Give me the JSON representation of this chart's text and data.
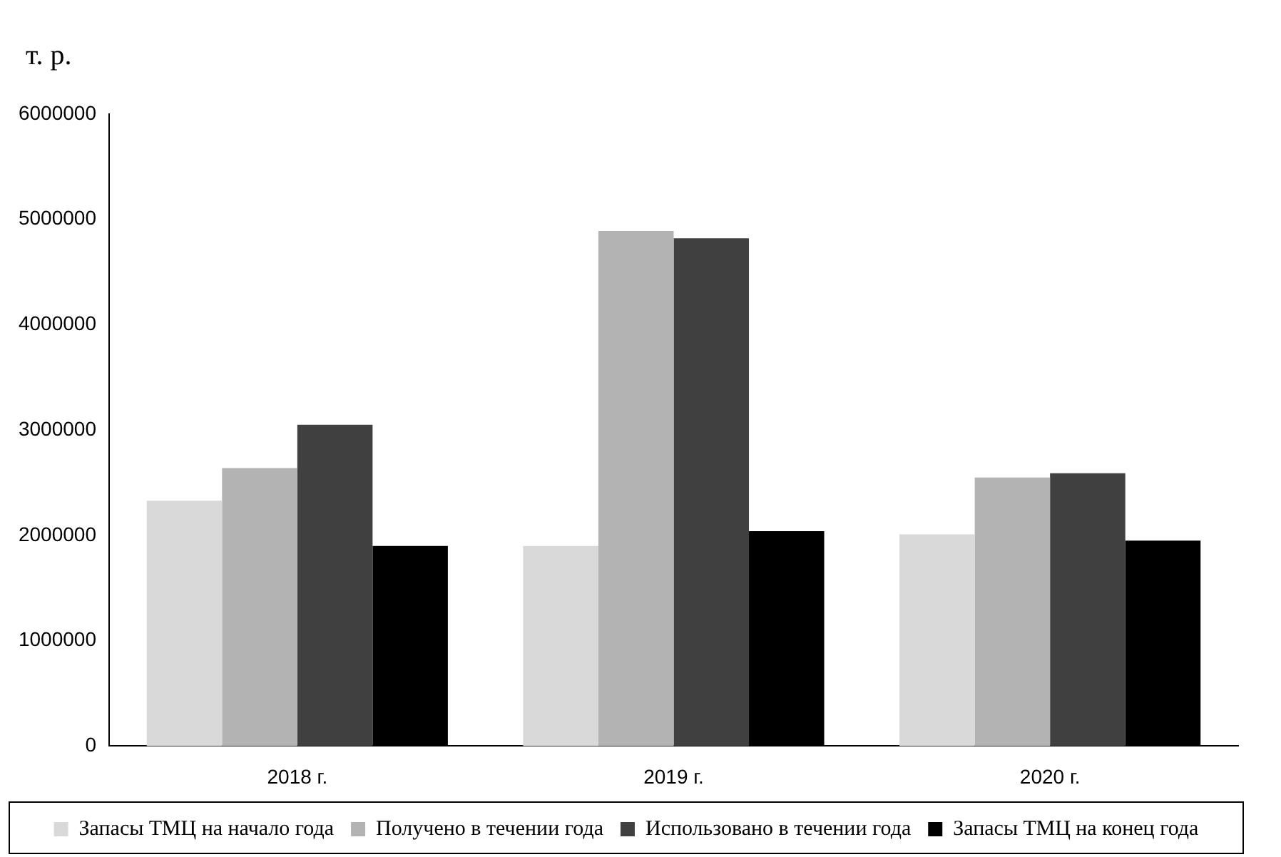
{
  "chart_data": {
    "type": "bar",
    "ylabel": "т. р.",
    "categories": [
      "2018 г.",
      "2019 г.",
      "2020 г."
    ],
    "series": [
      {
        "name": "Запасы ТМЦ на начало года",
        "color": "#d9d9d9",
        "values": [
          2330000,
          1900000,
          2010000
        ]
      },
      {
        "name": "Получено в течении года",
        "color": "#b3b3b3",
        "values": [
          2640000,
          4890000,
          2550000
        ]
      },
      {
        "name": "Использовано в течении года",
        "color": "#404040",
        "values": [
          3050000,
          4820000,
          2590000
        ]
      },
      {
        "name": "Запасы ТМЦ на конец года",
        "color": "#000000",
        "values": [
          1900000,
          2040000,
          1950000
        ]
      }
    ],
    "ylim": [
      0,
      6000000
    ],
    "yticks": [
      0,
      1000000,
      2000000,
      3000000,
      4000000,
      5000000,
      6000000
    ],
    "grid": false,
    "legend": "bottom"
  }
}
